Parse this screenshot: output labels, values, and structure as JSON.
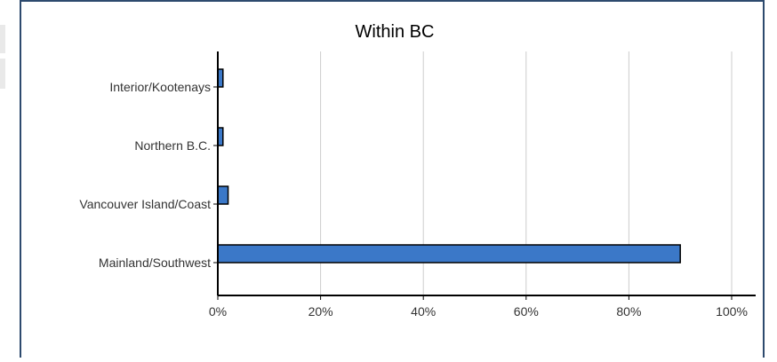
{
  "chart_data": {
    "type": "bar",
    "orientation": "horizontal",
    "title": "Within BC",
    "categories": [
      "Interior/Kootenays",
      "Northern B.C.",
      "Vancouver Island/Coast",
      "Mainland/Southwest"
    ],
    "values": [
      1,
      1,
      2,
      90
    ],
    "xlim": [
      0,
      100
    ],
    "xticks": [
      "0%",
      "20%",
      "40%",
      "60%",
      "80%",
      "100%"
    ],
    "xtick_values": [
      0,
      20,
      40,
      60,
      80,
      100
    ],
    "grid": "vertical",
    "bar_color": "#3b78c8",
    "bar_edge_color": "#000000",
    "grid_color": "#cccccc"
  }
}
